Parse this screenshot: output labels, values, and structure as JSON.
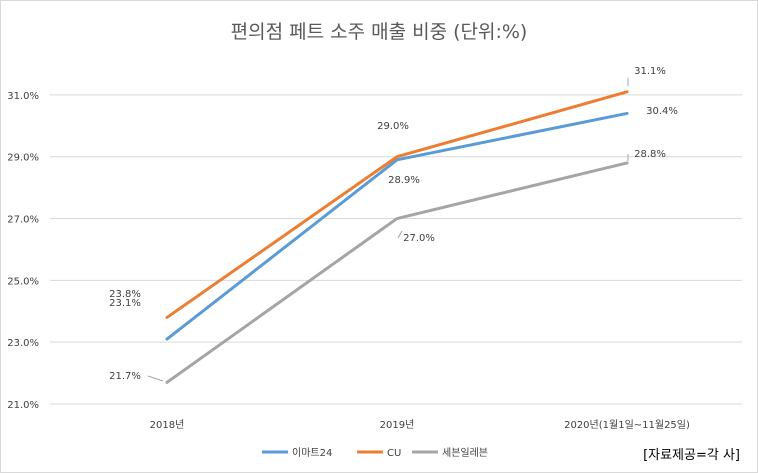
{
  "chart_data": {
    "type": "line",
    "title": "편의점 페트 소주 매출 비중 (단위:%)",
    "categories": [
      "2018년",
      "2019년",
      "2020년(1월1일~11월25일)"
    ],
    "ylim": [
      21,
      32
    ],
    "yticks": [
      21,
      23,
      25,
      27,
      29,
      31
    ],
    "ytick_labels": [
      "21.0%",
      "23.0%",
      "25.0%",
      "27.0%",
      "29.0%",
      "31.0%"
    ],
    "grid": true,
    "legend_position": "bottom",
    "series": [
      {
        "name": "이마트24",
        "color": "#5B9BD5",
        "values": [
          23.1,
          28.9,
          30.4
        ],
        "labels": [
          "23.1%",
          "28.9%",
          "30.4%"
        ]
      },
      {
        "name": "CU",
        "color": "#ED7D31",
        "values": [
          23.8,
          29.0,
          31.1
        ],
        "labels": [
          "23.8%",
          "29.0%",
          "31.1%"
        ]
      },
      {
        "name": "세븐일레븐",
        "color": "#A5A5A5",
        "values": [
          21.7,
          27.0,
          28.8
        ],
        "labels": [
          "21.7%",
          "27.0%",
          "28.8%"
        ]
      }
    ]
  },
  "source_note": "[자료제공=각 사]"
}
